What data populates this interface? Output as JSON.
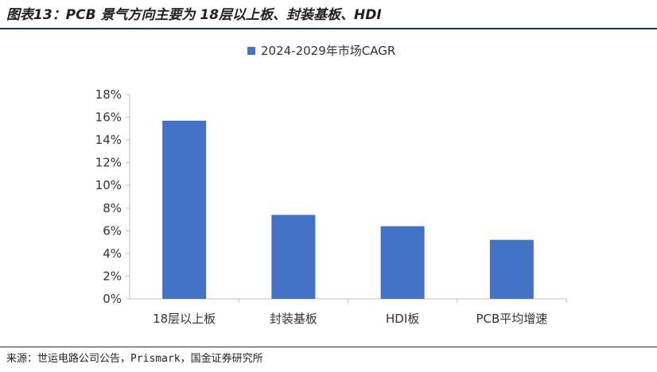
{
  "figure": {
    "title": "图表13：PCB 景气方向主要为 18层以上板、封装基板、HDI",
    "source": "来源：世运电路公司公告，Prismark，国金证券研究所"
  },
  "colors": {
    "bar": "#4472c4",
    "axis": "#bfbfbf",
    "rule": "#1a2f6b"
  },
  "chart_data": {
    "type": "bar",
    "title": "",
    "xlabel": "",
    "ylabel": "",
    "categories": [
      "18层以上板",
      "封装基板",
      "HDI板",
      "PCB平均增速"
    ],
    "series": [
      {
        "name": "2024-2029年市场CAGR",
        "values": [
          15.7,
          7.4,
          6.4,
          5.2
        ]
      }
    ],
    "ylim": [
      0,
      18
    ],
    "yticks": [
      "0%",
      "2%",
      "4%",
      "6%",
      "8%",
      "10%",
      "12%",
      "14%",
      "16%",
      "18%"
    ],
    "legend": "top-center",
    "grid": false
  }
}
